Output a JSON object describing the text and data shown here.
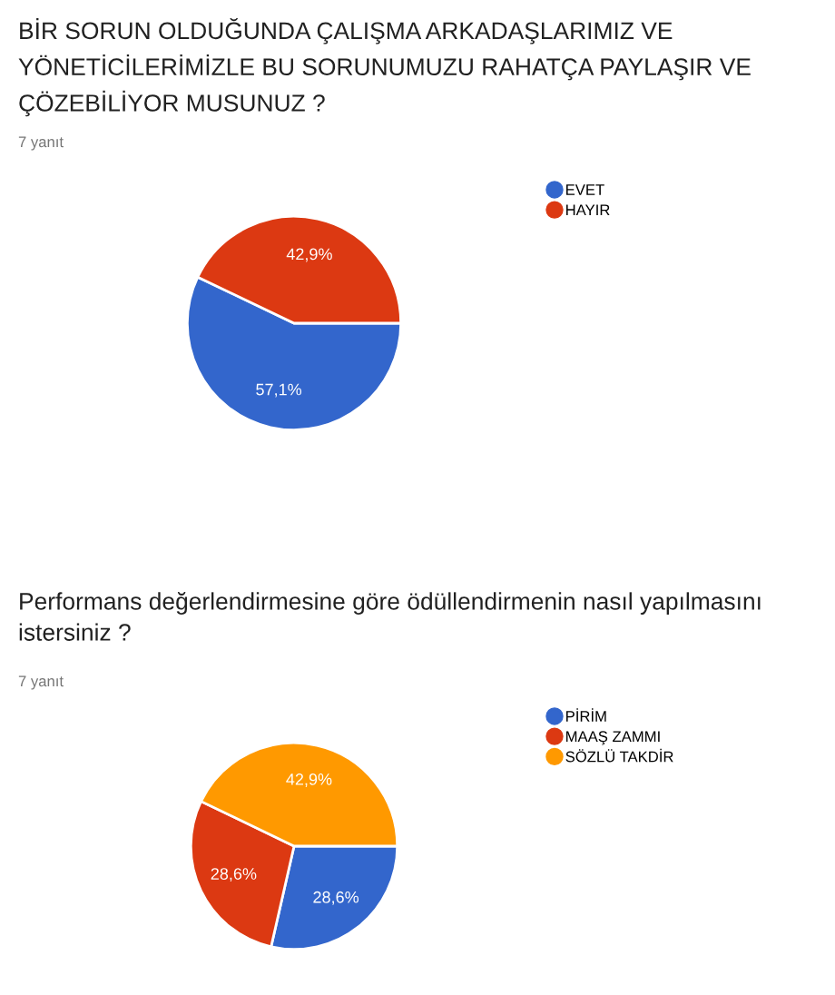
{
  "chart_data": [
    {
      "type": "pie",
      "title": "BİR SORUN OLDUĞUNDA ÇALIŞMA ARKADAŞLARIMIZ VE YÖNETİCİLERİMİZLE BU SORUNUMUZU RAHATÇA PAYLAŞIR VE ÇÖZEBİLİYOR MUSUNUZ ?",
      "subtitle": "7 yanıt",
      "categories": [
        "EVET",
        "HAYIR"
      ],
      "values": [
        57.1,
        42.9
      ],
      "colors": [
        "#3366cc",
        "#dc3912"
      ],
      "value_labels": [
        "57,1%",
        "42,9%"
      ],
      "legend": "right"
    },
    {
      "type": "pie",
      "title": "Performans değerlendirmesine göre ödüllendirmenin nasıl yapılmasını istersiniz ?",
      "subtitle": "7 yanıt",
      "categories": [
        "PİRİM",
        "MAAŞ ZAMMI",
        "SÖZLÜ TAKDİR"
      ],
      "values": [
        28.6,
        28.6,
        42.9
      ],
      "colors": [
        "#3366cc",
        "#dc3912",
        "#ff9900"
      ],
      "value_labels": [
        "28,6%",
        "28,6%",
        "42,9%"
      ],
      "legend": "right"
    }
  ]
}
